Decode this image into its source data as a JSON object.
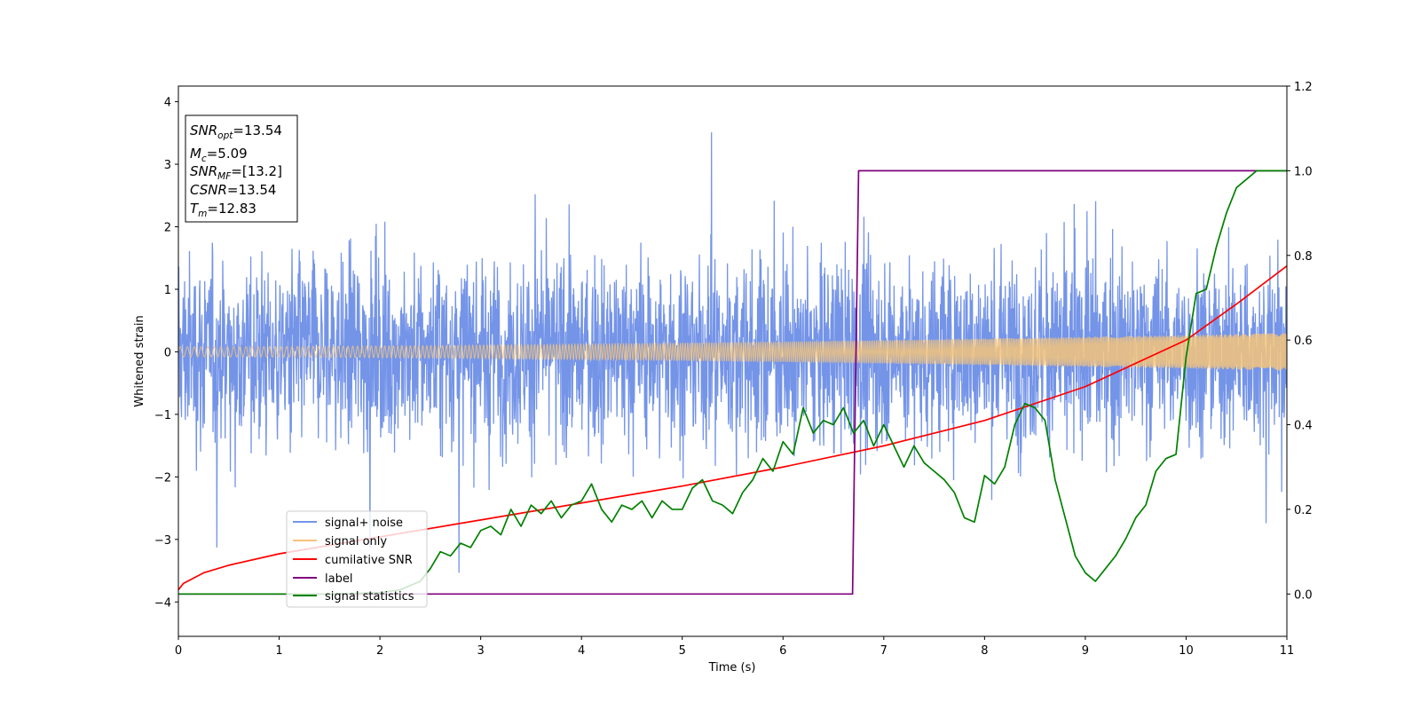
{
  "chart_data": {
    "type": "line",
    "xlabel": "Time (s)",
    "ylabel": "Whitened strain",
    "xlim": [
      0,
      11
    ],
    "ylim_left": [
      -4.55,
      4.25
    ],
    "ylim_right": [
      -0.1,
      1.2
    ],
    "x_ticks": [
      "0",
      "1",
      "2",
      "3",
      "4",
      "5",
      "6",
      "7",
      "8",
      "9",
      "10",
      "11"
    ],
    "y_left_ticks": [
      "4",
      "3",
      "2",
      "1",
      "0",
      "−1",
      "−2",
      "−3",
      "−4"
    ],
    "y_right_ticks": [
      "1.2",
      "1.0",
      "0.8",
      "0.6",
      "0.4",
      "0.2",
      "0.0"
    ],
    "grid": false,
    "legend_position": "lower-left",
    "annotation": {
      "snr_opt": {
        "base": "SNR",
        "sub": "opt",
        "value": "=13.54"
      },
      "mc": {
        "base": "M",
        "sub": "c",
        "value": "=5.09"
      },
      "snr_mf": {
        "base": "SNR",
        "sub": "MF",
        "value": "=[13.2]"
      },
      "csnr": {
        "base": "CSNR",
        "sub": "",
        "value": "=13.54"
      },
      "tm": {
        "base": "T",
        "sub": "m",
        "value": "=12.83"
      }
    },
    "series": [
      {
        "name": "signal+ noise",
        "axis": "left",
        "color": "#7494e8",
        "description": "whitened noisy strain, approx. within ±2 with spikes to ±3.8",
        "amplitude_std": 0.75
      },
      {
        "name": "signal only",
        "axis": "left",
        "color": "#f5c47a",
        "description": "chirp, amplitude growing from ~0.08 at t=0 to ~0.3 at t=11",
        "amplitude_start": 0.08,
        "amplitude_end": 0.3
      },
      {
        "name": "cumilative SNR",
        "axis": "right",
        "color": "#ff0000",
        "x": [
          0,
          0.05,
          0.25,
          0.5,
          1,
          2,
          3,
          4,
          5,
          6,
          7,
          8,
          9,
          10,
          10.5,
          11
        ],
        "y": [
          0.01,
          0.025,
          0.05,
          0.068,
          0.095,
          0.135,
          0.175,
          0.215,
          0.255,
          0.3,
          0.35,
          0.41,
          0.49,
          0.6,
          0.685,
          0.775
        ]
      },
      {
        "name": "label",
        "axis": "right",
        "color": "#800080",
        "x": [
          0,
          6.69,
          6.75,
          11
        ],
        "y": [
          0,
          0,
          1,
          1
        ]
      },
      {
        "name": "signal statistics",
        "axis": "right",
        "color": "#008000",
        "x": [
          0,
          0.5,
          1,
          1.5,
          2,
          2.2,
          2.4,
          2.5,
          2.6,
          2.7,
          2.8,
          2.9,
          3.0,
          3.1,
          3.2,
          3.3,
          3.4,
          3.5,
          3.6,
          3.7,
          3.8,
          3.9,
          4.0,
          4.1,
          4.2,
          4.3,
          4.4,
          4.5,
          4.6,
          4.7,
          4.8,
          4.9,
          5.0,
          5.1,
          5.2,
          5.3,
          5.4,
          5.5,
          5.6,
          5.7,
          5.8,
          5.9,
          6.0,
          6.1,
          6.2,
          6.3,
          6.4,
          6.5,
          6.6,
          6.7,
          6.8,
          6.9,
          7.0,
          7.1,
          7.2,
          7.3,
          7.4,
          7.5,
          7.6,
          7.7,
          7.8,
          7.9,
          8.0,
          8.1,
          8.2,
          8.3,
          8.4,
          8.5,
          8.6,
          8.7,
          8.8,
          8.9,
          9.0,
          9.1,
          9.2,
          9.3,
          9.4,
          9.5,
          9.6,
          9.7,
          9.8,
          9.9,
          10.0,
          10.1,
          10.2,
          10.3,
          10.4,
          10.5,
          10.6,
          10.7,
          10.8,
          10.9,
          11.0
        ],
        "y": [
          0.0,
          0.0,
          0.0,
          0.0,
          0.003,
          0.01,
          0.03,
          0.06,
          0.1,
          0.09,
          0.12,
          0.11,
          0.15,
          0.16,
          0.14,
          0.2,
          0.16,
          0.21,
          0.19,
          0.22,
          0.18,
          0.21,
          0.22,
          0.26,
          0.2,
          0.17,
          0.21,
          0.2,
          0.22,
          0.18,
          0.22,
          0.2,
          0.2,
          0.25,
          0.27,
          0.22,
          0.21,
          0.19,
          0.24,
          0.27,
          0.32,
          0.29,
          0.36,
          0.33,
          0.44,
          0.38,
          0.41,
          0.4,
          0.44,
          0.38,
          0.41,
          0.35,
          0.4,
          0.35,
          0.3,
          0.35,
          0.31,
          0.29,
          0.27,
          0.24,
          0.18,
          0.17,
          0.28,
          0.26,
          0.3,
          0.4,
          0.45,
          0.44,
          0.41,
          0.27,
          0.18,
          0.09,
          0.05,
          0.03,
          0.06,
          0.09,
          0.13,
          0.18,
          0.21,
          0.29,
          0.32,
          0.33,
          0.56,
          0.71,
          0.72,
          0.82,
          0.9,
          0.96,
          0.98,
          1.0,
          1.0,
          1.0,
          1.0
        ]
      }
    ]
  }
}
